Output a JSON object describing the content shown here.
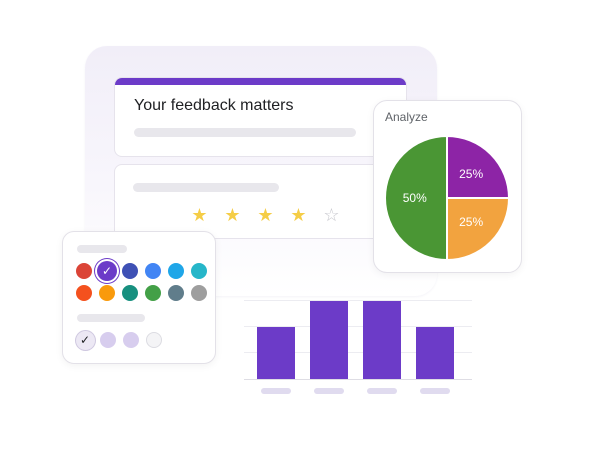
{
  "form": {
    "title": "Your feedback matters",
    "accent_color": "#6c3bc8",
    "rating": {
      "value": 4,
      "max": 5,
      "filled_icon": "star-filled-icon",
      "empty_icon": "star-outline-icon",
      "star_glyph": "★",
      "empty_glyph": "☆"
    }
  },
  "analyze_card": {
    "title": "Analyze",
    "chart_data": {
      "type": "pie",
      "slices": [
        {
          "label": "50%",
          "value": 50,
          "color": "#4a9634"
        },
        {
          "label": "25%",
          "value": 25,
          "color": "#8d24a6"
        },
        {
          "label": "25%",
          "value": 25,
          "color": "#f2a33f"
        }
      ]
    }
  },
  "palette": {
    "colors": [
      "#db4437",
      "#6c3bc8",
      "#3f51b5",
      "#4285f4",
      "#1fa6e8",
      "#26b6c9",
      "#f4511e",
      "#f99a0c",
      "#17907f",
      "#43a047",
      "#607d8b",
      "#9e9e9e"
    ],
    "selected_index": 1,
    "check_glyph": "✓",
    "tones": [
      "#ece8f4",
      "#d7cdee",
      "#d7cdee",
      "#f4f4f6"
    ],
    "selected_tone_index": 0
  },
  "bar_chart": {
    "chart_data": {
      "type": "bar",
      "categories": [
        "",
        "",
        "",
        ""
      ],
      "values": [
        2,
        3,
        3,
        2
      ],
      "ylim": [
        0,
        3
      ],
      "color": "#6c3bc8",
      "grid": true
    }
  }
}
